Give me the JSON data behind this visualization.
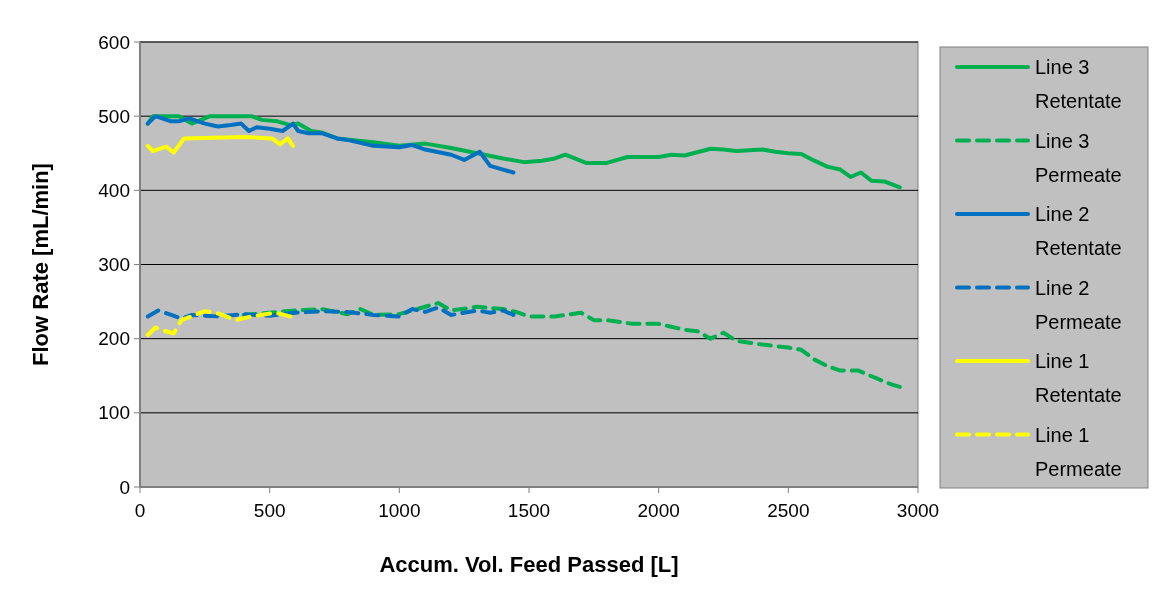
{
  "chart_data": {
    "type": "line",
    "xlabel": "Accum. Vol. Feed Passed [L]",
    "ylabel": "Flow Rate [mL/min]",
    "xlim": [
      0,
      3000
    ],
    "xticks": [
      0,
      500,
      1000,
      1500,
      2000,
      2500,
      3000
    ],
    "ylim": [
      0,
      600
    ],
    "yticks": [
      0,
      100,
      200,
      300,
      400,
      500,
      600
    ],
    "grid": "y",
    "legend": "right",
    "marker": "none",
    "series": [
      {
        "name": "Line 3 Retentate",
        "color": "#00b050",
        "line_style": "solid",
        "x": [
          30,
          50,
          150,
          200,
          270,
          430,
          470,
          530,
          580,
          610,
          660,
          700,
          760,
          900,
          1000,
          1100,
          1200,
          1300,
          1400,
          1480,
          1550,
          1600,
          1640,
          1720,
          1800,
          1880,
          2000,
          2050,
          2100,
          2200,
          2250,
          2300,
          2400,
          2450,
          2500,
          2550,
          2600,
          2650,
          2700,
          2740,
          2780,
          2820,
          2870,
          2900,
          2930
        ],
        "values": [
          490,
          500,
          500,
          490,
          500,
          500,
          495,
          493,
          488,
          490,
          480,
          478,
          470,
          465,
          460,
          463,
          457,
          450,
          443,
          438,
          440,
          443,
          448,
          437,
          437,
          445,
          445,
          448,
          447,
          456,
          455,
          453,
          455,
          452,
          450,
          449,
          440,
          432,
          428,
          418,
          424,
          413,
          412,
          408,
          404
        ]
      },
      {
        "name": "Line 3 Permeate",
        "color": "#00b050",
        "line_style": "dashed",
        "x": [
          400,
          600,
          700,
          800,
          850,
          900,
          1000,
          1050,
          1100,
          1150,
          1200,
          1300,
          1400,
          1450,
          1500,
          1600,
          1700,
          1750,
          1800,
          1900,
          2000,
          2100,
          2150,
          2200,
          2250,
          2300,
          2400,
          2500,
          2550,
          2600,
          2650,
          2700,
          2770,
          2850,
          2900,
          2930
        ],
        "values": [
          232,
          238,
          240,
          233,
          240,
          232,
          233,
          238,
          243,
          248,
          238,
          243,
          240,
          236,
          230,
          230,
          235,
          225,
          225,
          220,
          220,
          212,
          210,
          200,
          208,
          197,
          192,
          188,
          185,
          172,
          163,
          157,
          157,
          145,
          138,
          135
        ]
      },
      {
        "name": "Line 2 Retentate",
        "color": "#0070c0",
        "line_style": "solid",
        "x": [
          30,
          60,
          120,
          150,
          190,
          250,
          300,
          350,
          390,
          420,
          450,
          500,
          550,
          590,
          610,
          650,
          700,
          760,
          800,
          900,
          1000,
          1050,
          1100,
          1200,
          1250,
          1310,
          1350,
          1400,
          1440
        ],
        "values": [
          490,
          500,
          493,
          493,
          497,
          490,
          486,
          488,
          490,
          480,
          485,
          483,
          480,
          490,
          480,
          477,
          477,
          470,
          468,
          460,
          458,
          461,
          455,
          448,
          441,
          452,
          433,
          428,
          424
        ]
      },
      {
        "name": "Line 2 Permeate",
        "color": "#0070c0",
        "line_style": "dashed",
        "x": [
          30,
          70,
          120,
          160,
          200,
          300,
          400,
          500,
          600,
          700,
          800,
          900,
          1000,
          1050,
          1100,
          1150,
          1200,
          1300,
          1350,
          1400,
          1440
        ],
        "values": [
          230,
          238,
          232,
          227,
          232,
          230,
          233,
          231,
          235,
          237,
          236,
          232,
          230,
          240,
          236,
          242,
          232,
          238,
          235,
          238,
          232
        ]
      },
      {
        "name": "Line 1 Retentate",
        "color": "#ffff00",
        "line_style": "solid",
        "x": [
          30,
          50,
          100,
          130,
          170,
          400,
          510,
          540,
          570,
          590
        ],
        "values": [
          460,
          453,
          459,
          451,
          470,
          472,
          470,
          462,
          470,
          460
        ]
      },
      {
        "name": "Line 1 Permeate",
        "color": "#ffff00",
        "line_style": "dashed",
        "x": [
          30,
          60,
          100,
          130,
          160,
          250,
          300,
          370,
          430,
          520,
          580
        ],
        "values": [
          205,
          215,
          210,
          207,
          225,
          237,
          234,
          225,
          230,
          235,
          230
        ]
      }
    ]
  }
}
